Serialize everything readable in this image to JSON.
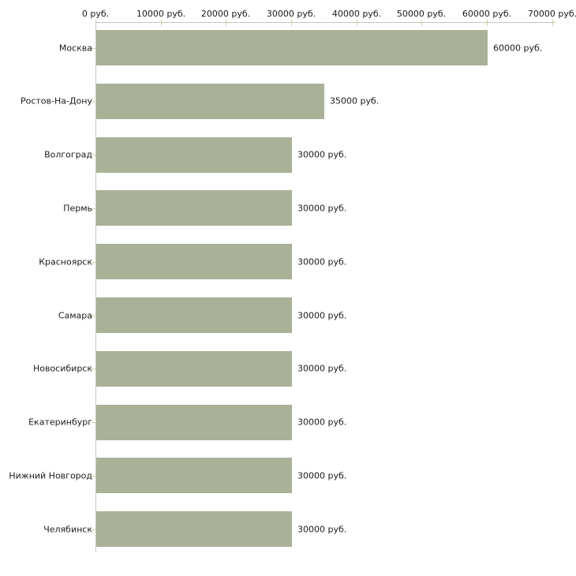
{
  "chart_data": {
    "type": "bar",
    "orientation": "horizontal",
    "title": "",
    "xlabel": "",
    "ylabel": "",
    "unit": "руб.",
    "categories": [
      "Москва",
      "Ростов-На-Дону",
      "Волгоград",
      "Пермь",
      "Красноярск",
      "Самара",
      "Новосибирск",
      "Екатеринбург",
      "Нижний Новгород",
      "Челябинск"
    ],
    "values": [
      60000,
      35000,
      30000,
      30000,
      30000,
      30000,
      30000,
      30000,
      30000,
      30000
    ],
    "value_labels": [
      "60000 руб.",
      "35000 руб.",
      "30000 руб.",
      "30000 руб.",
      "30000 руб.",
      "30000 руб.",
      "30000 руб.",
      "30000 руб.",
      "30000 руб.",
      "30000 руб."
    ],
    "x_tick_values": [
      0,
      10000,
      20000,
      30000,
      40000,
      50000,
      60000,
      70000
    ],
    "x_tick_labels": [
      "0 руб.",
      "10000 руб.",
      "20000 руб.",
      "30000 руб.",
      "40000 руб.",
      "50000 руб.",
      "60000 руб.",
      "70000 руб."
    ],
    "xlim": [
      0,
      70000
    ],
    "grid": false,
    "legend": false,
    "colors": {
      "bar_fill": "#a9b197",
      "axis_line": "#c6c7bd",
      "tick_mark": "#cdd0a9",
      "text": "#1a1a1a",
      "background": "#ffffff"
    }
  }
}
